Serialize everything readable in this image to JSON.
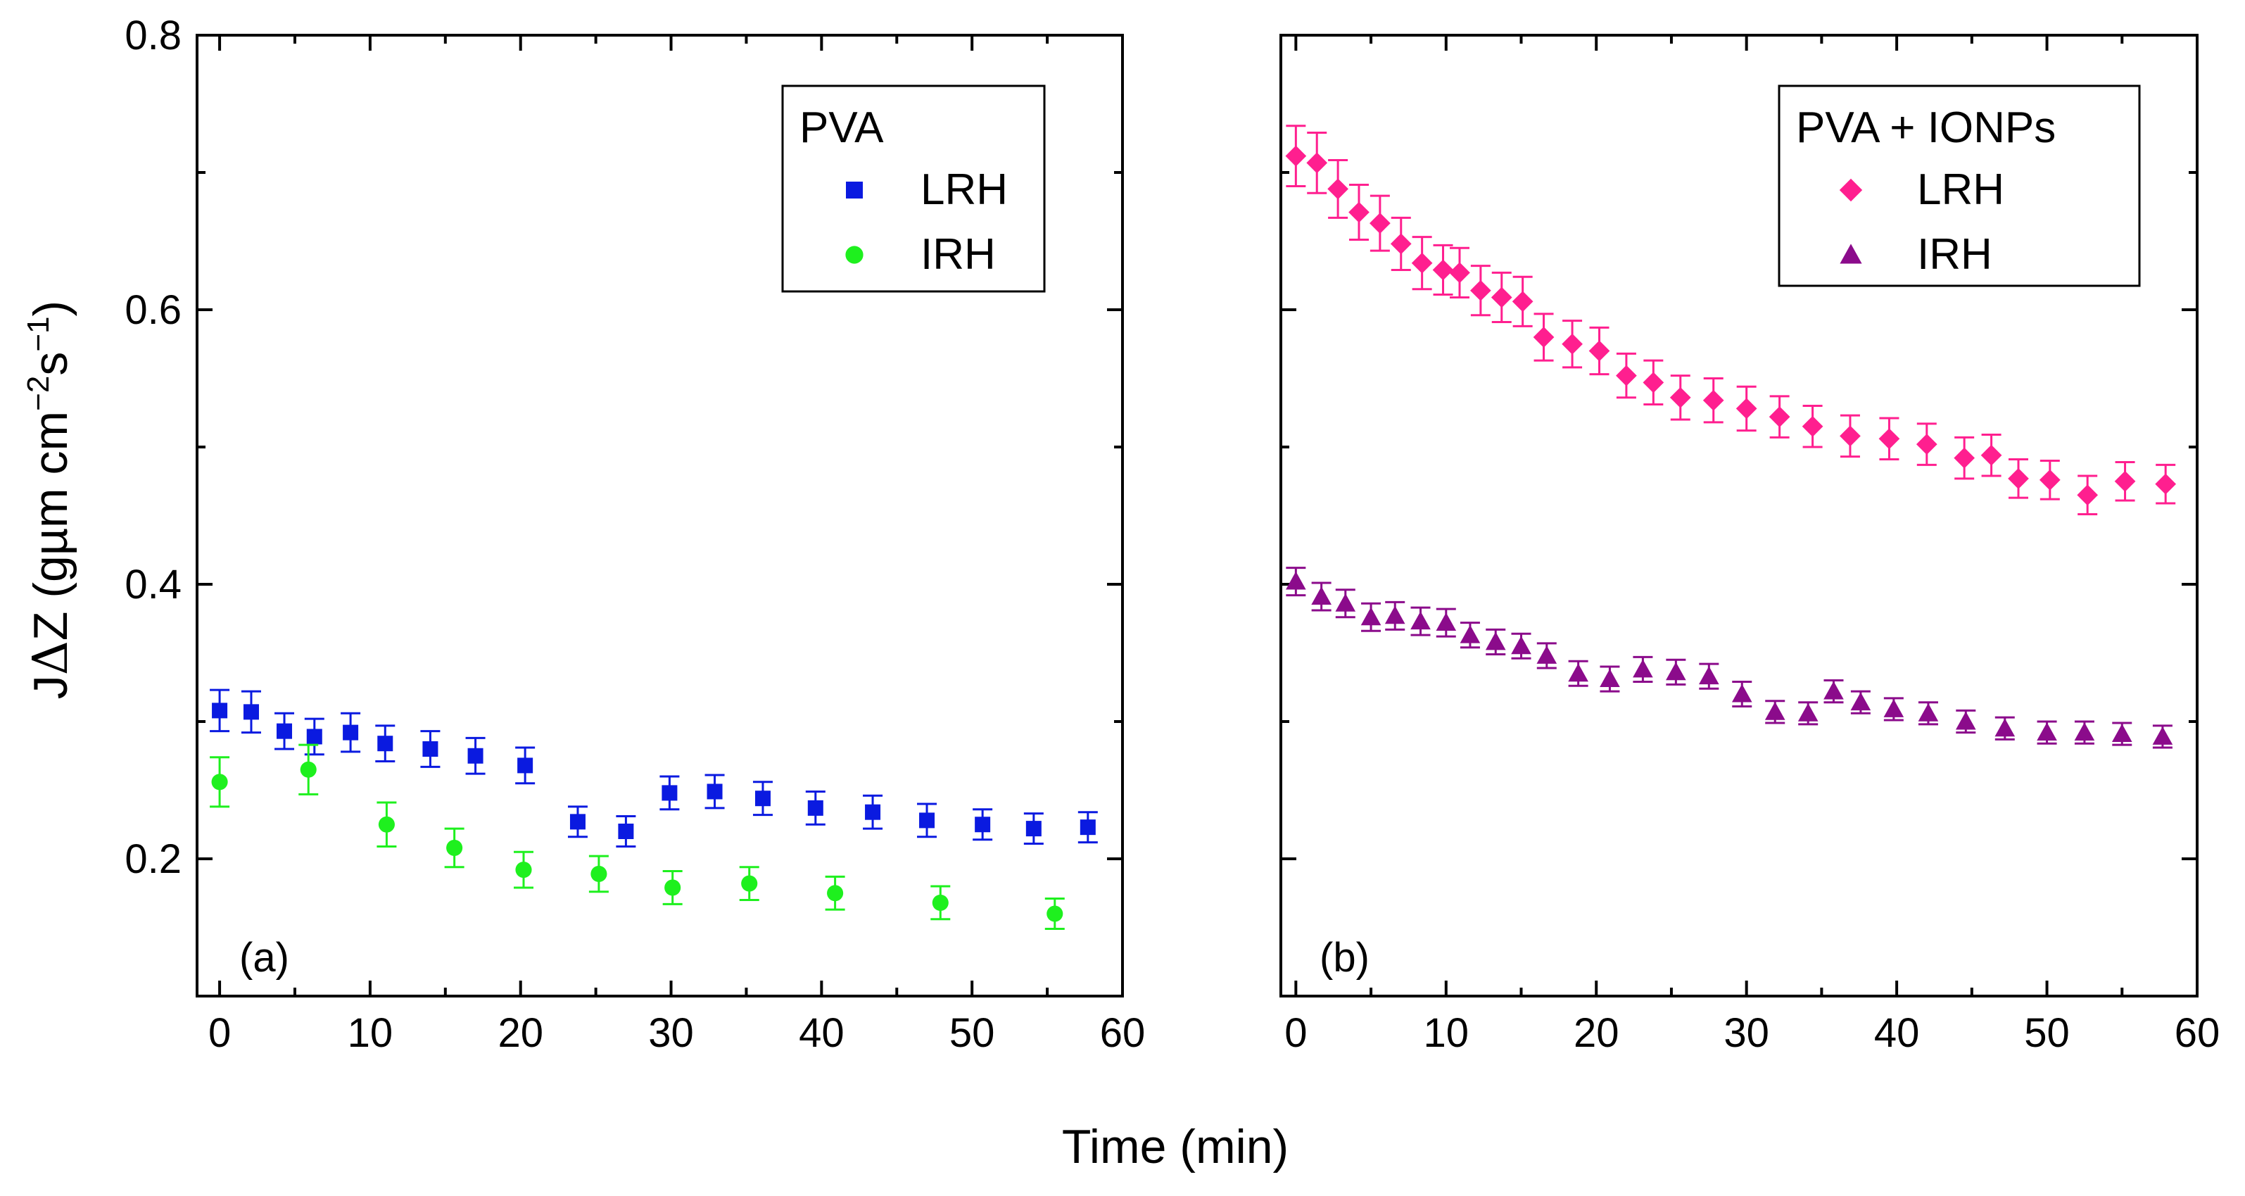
{
  "chart_data": [
    {
      "type": "scatter",
      "panel_label": "(a)",
      "legend_title": "PVA",
      "legend_position": "top-right",
      "xlabel": "Time (min)",
      "ylabel_parts": [
        "J",
        "Δ",
        "Z (gµm cm",
        "−2",
        "s",
        "−1",
        ")"
      ],
      "xlim": [
        -1.5,
        60
      ],
      "ylim": [
        0.1,
        0.8
      ],
      "xticks": [
        "0",
        "10",
        "20",
        "30",
        "40",
        "50",
        "60"
      ],
      "yticks": [
        "0.2",
        "0.4",
        "0.6",
        "0.8"
      ],
      "series": [
        {
          "name": "LRH",
          "marker": "square",
          "color": "#0a1ae0",
          "x": [
            0,
            2.1,
            4.3,
            6.3,
            8.7,
            11,
            14,
            17,
            20.3,
            23.8,
            27,
            29.9,
            32.9,
            36.1,
            39.6,
            43.4,
            47,
            50.7,
            54.1,
            57.7
          ],
          "y": [
            0.308,
            0.307,
            0.293,
            0.289,
            0.292,
            0.284,
            0.28,
            0.275,
            0.268,
            0.227,
            0.22,
            0.248,
            0.249,
            0.244,
            0.237,
            0.234,
            0.228,
            0.225,
            0.222,
            0.223
          ],
          "err": [
            0.015,
            0.015,
            0.013,
            0.013,
            0.014,
            0.013,
            0.013,
            0.013,
            0.013,
            0.011,
            0.011,
            0.012,
            0.012,
            0.012,
            0.012,
            0.012,
            0.012,
            0.011,
            0.011,
            0.011
          ]
        },
        {
          "name": "IRH",
          "marker": "circle",
          "color": "#1ef01e",
          "x": [
            0,
            5.9,
            11.1,
            15.6,
            20.2,
            25.2,
            30.1,
            35.2,
            40.9,
            47.9,
            55.5
          ],
          "y": [
            0.256,
            0.265,
            0.225,
            0.208,
            0.192,
            0.189,
            0.179,
            0.182,
            0.175,
            0.168,
            0.16
          ],
          "err": [
            0.018,
            0.018,
            0.016,
            0.014,
            0.013,
            0.013,
            0.012,
            0.012,
            0.012,
            0.012,
            0.011
          ]
        }
      ]
    },
    {
      "type": "scatter",
      "panel_label": "(b)",
      "legend_title": "PVA + IONPs",
      "legend_position": "top-right",
      "xlabel": "Time (min)",
      "xlim": [
        -1,
        60
      ],
      "ylim": [
        0.1,
        0.8
      ],
      "xticks": [
        "0",
        "10",
        "20",
        "30",
        "40",
        "50",
        "60"
      ],
      "series": [
        {
          "name": "LRH",
          "marker": "diamond",
          "color": "#ff1f8f",
          "x": [
            0,
            1.4,
            2.8,
            4.2,
            5.6,
            7,
            8.4,
            9.8,
            10.9,
            12.3,
            13.7,
            15.1,
            16.5,
            18.4,
            20.2,
            22,
            23.8,
            25.6,
            27.8,
            30,
            32.2,
            34.4,
            36.9,
            39.5,
            42,
            44.5,
            46.3,
            48.1,
            50.2,
            52.7,
            55.2,
            57.9
          ],
          "y": [
            0.712,
            0.707,
            0.688,
            0.671,
            0.663,
            0.648,
            0.634,
            0.629,
            0.627,
            0.614,
            0.609,
            0.606,
            0.58,
            0.575,
            0.57,
            0.552,
            0.547,
            0.536,
            0.534,
            0.528,
            0.522,
            0.515,
            0.508,
            0.506,
            0.502,
            0.492,
            0.494,
            0.477,
            0.476,
            0.465,
            0.475,
            0.473
          ],
          "err": [
            0.022,
            0.022,
            0.021,
            0.02,
            0.02,
            0.019,
            0.019,
            0.018,
            0.018,
            0.018,
            0.018,
            0.018,
            0.017,
            0.017,
            0.017,
            0.016,
            0.016,
            0.016,
            0.016,
            0.016,
            0.015,
            0.015,
            0.015,
            0.015,
            0.015,
            0.015,
            0.015,
            0.014,
            0.014,
            0.014,
            0.014,
            0.014
          ]
        },
        {
          "name": "IRH",
          "marker": "triangle",
          "color": "#8b0b8b",
          "x": [
            0,
            1.7,
            3.3,
            5,
            6.6,
            8.3,
            10,
            11.6,
            13.3,
            15,
            16.7,
            18.8,
            20.9,
            23.1,
            25.3,
            27.5,
            29.7,
            31.9,
            34.1,
            35.8,
            37.6,
            39.8,
            42.1,
            44.6,
            47.2,
            50,
            52.5,
            55,
            57.7
          ],
          "y": [
            0.402,
            0.391,
            0.386,
            0.376,
            0.377,
            0.373,
            0.372,
            0.363,
            0.358,
            0.355,
            0.348,
            0.335,
            0.331,
            0.338,
            0.336,
            0.333,
            0.32,
            0.307,
            0.306,
            0.322,
            0.314,
            0.309,
            0.306,
            0.3,
            0.295,
            0.292,
            0.292,
            0.291,
            0.289
          ],
          "err": [
            0.01,
            0.01,
            0.01,
            0.01,
            0.01,
            0.01,
            0.01,
            0.009,
            0.009,
            0.009,
            0.009,
            0.009,
            0.009,
            0.009,
            0.009,
            0.009,
            0.009,
            0.008,
            0.008,
            0.008,
            0.008,
            0.008,
            0.008,
            0.008,
            0.008,
            0.008,
            0.008,
            0.008,
            0.008
          ]
        }
      ]
    }
  ]
}
